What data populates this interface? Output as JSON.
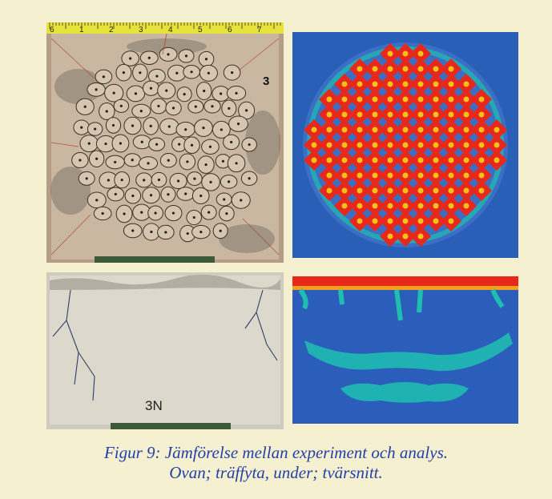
{
  "figure": {
    "caption_line1": "Figur 9: Jämförelse mellan experiment och analys.",
    "caption_line2": "Ovan; träffyta, under; tvärsnitt.",
    "caption_color": "#2340a8",
    "background": "#f5f0cf"
  },
  "panels": {
    "impact_photo": {
      "ruler_numbers": [
        "6",
        "1",
        "2",
        "3",
        "4",
        "5",
        "6",
        "7"
      ],
      "specimen_label": "3"
    },
    "impact_analysis": {},
    "section_photo": {
      "specimen_label": "3N"
    },
    "section_analysis": {}
  }
}
